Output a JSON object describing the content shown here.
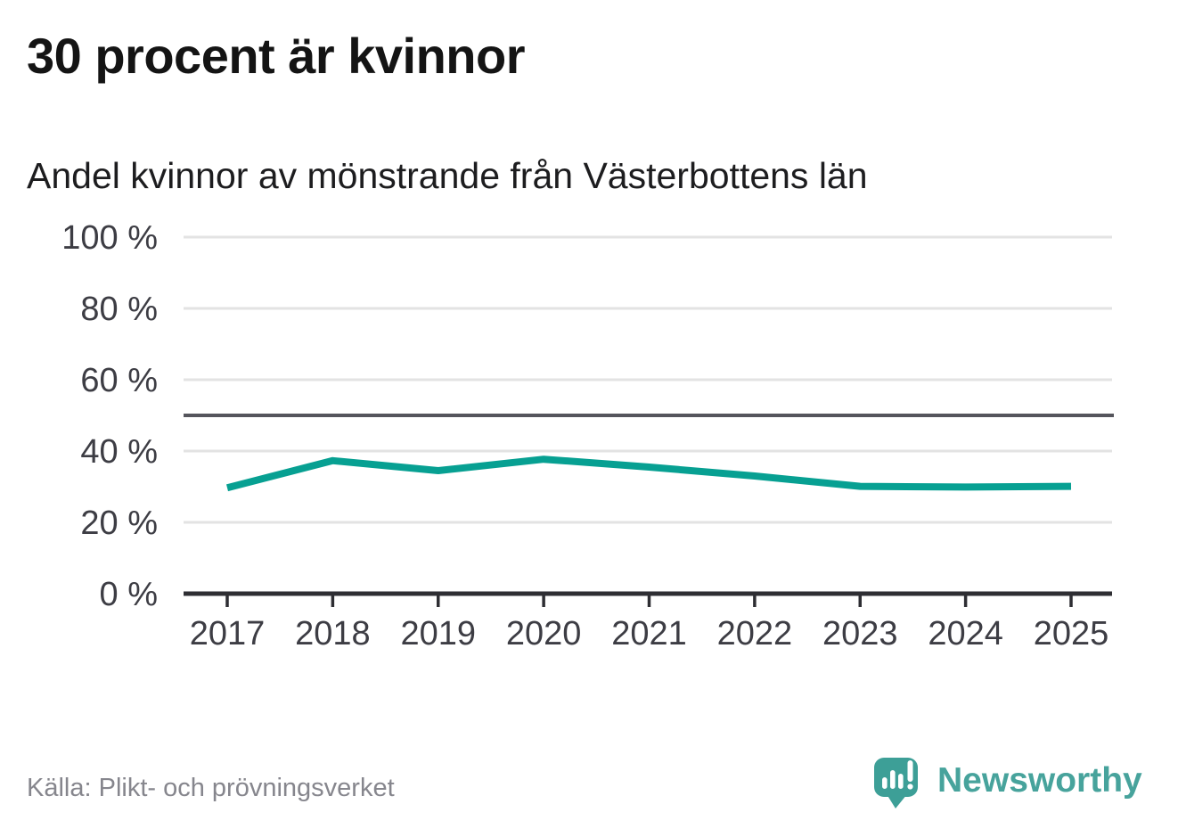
{
  "header": {
    "title": "30 procent är kvinnor",
    "subtitle": "Andel kvinnor av mönstrande från Västerbottens län"
  },
  "footer": {
    "source": "Källa: Plikt- och prövningsverket",
    "logo_text": "Newsworthy"
  },
  "colors": {
    "line": "#07a092",
    "grid": "#e3e3e3",
    "reference_line": "#55555c",
    "axis": "#2e2e33",
    "tick_label": "#3d3d44",
    "title": "#141414",
    "subtitle": "#1d1d1f",
    "source": "#86868d",
    "logo_teal": "#47a39c",
    "logo_bubble": "#3d9f97"
  },
  "chart_data": {
    "type": "line",
    "title": "30 procent är kvinnor",
    "subtitle": "Andel kvinnor av mönstrande från Västerbottens län",
    "source": "Källa: Plikt- och prövningsverket",
    "categories": [
      "2017",
      "2018",
      "2019",
      "2020",
      "2021",
      "2022",
      "2023",
      "2024",
      "2025"
    ],
    "series": [
      {
        "name": "Andel kvinnor av mönstrande",
        "values": [
          29.7,
          37.3,
          34.5,
          37.7,
          35.5,
          33.0,
          30.1,
          29.9,
          30.1
        ]
      }
    ],
    "unit": "%",
    "ylim": [
      0,
      100
    ],
    "yticks": [
      {
        "value": 0,
        "label": "0 %"
      },
      {
        "value": 20,
        "label": "20 %"
      },
      {
        "value": 40,
        "label": "40 %"
      },
      {
        "value": 60,
        "label": "60 %"
      },
      {
        "value": 80,
        "label": "80 %"
      },
      {
        "value": 100,
        "label": "100 %"
      }
    ],
    "reference_line": 50,
    "grid": true,
    "legend": false
  }
}
